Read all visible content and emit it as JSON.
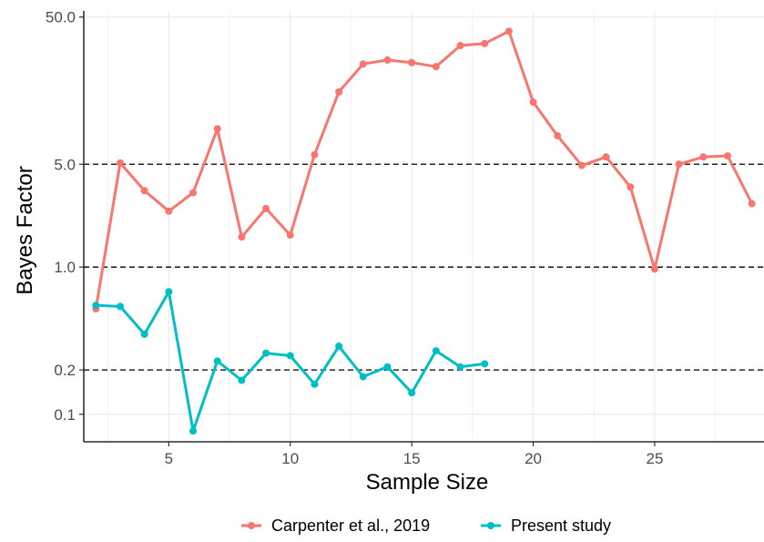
{
  "chart_data": {
    "type": "line",
    "title": "",
    "xlabel": "Sample Size",
    "ylabel": "Bayes Factor",
    "y_scale": "log10",
    "xlim": [
      1.5,
      29.5
    ],
    "ylim": [
      0.065,
      55
    ],
    "x_ticks": [
      5,
      10,
      15,
      20,
      25
    ],
    "y_ticks": [
      0.1,
      0.2,
      1.0,
      5.0,
      50.0
    ],
    "y_tick_labels": [
      "0.1",
      "0.2",
      "1.0",
      "5.0",
      "50.0"
    ],
    "reference_lines": [
      0.2,
      1.0,
      5.0
    ],
    "grid": true,
    "legend_position": "bottom",
    "series": [
      {
        "name": "Carpenter et al., 2019",
        "color": "#F8766D",
        "x": [
          2,
          3,
          4,
          5,
          6,
          7,
          8,
          9,
          10,
          11,
          12,
          13,
          14,
          15,
          16,
          17,
          18,
          19,
          20,
          21,
          22,
          23,
          24,
          25,
          26,
          27,
          28,
          29
        ],
        "y": [
          0.52,
          5.1,
          3.3,
          2.4,
          3.2,
          8.7,
          1.6,
          2.5,
          1.65,
          5.8,
          15.5,
          24,
          25.5,
          24.5,
          23,
          32,
          33,
          40,
          13.2,
          7.8,
          4.9,
          5.6,
          3.5,
          0.97,
          5.0,
          5.6,
          5.7,
          2.7
        ]
      },
      {
        "name": "Present study",
        "color": "#00BFC4",
        "x": [
          2,
          3,
          4,
          5,
          6,
          7,
          8,
          9,
          10,
          11,
          12,
          13,
          14,
          15,
          16,
          17,
          18
        ],
        "y": [
          0.55,
          0.54,
          0.35,
          0.68,
          0.077,
          0.23,
          0.17,
          0.26,
          0.25,
          0.16,
          0.29,
          0.18,
          0.21,
          0.14,
          0.27,
          0.21,
          0.22
        ]
      }
    ]
  }
}
